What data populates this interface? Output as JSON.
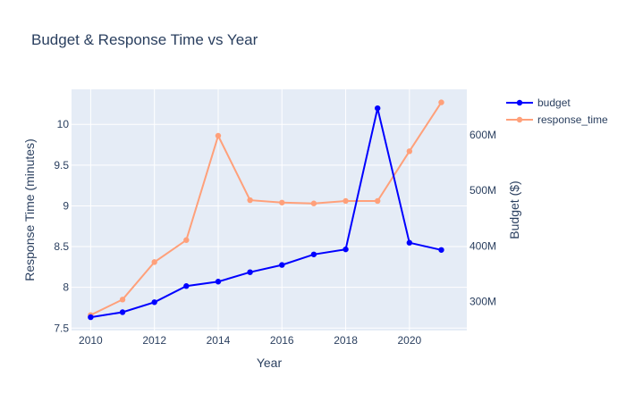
{
  "chart_data": {
    "type": "line",
    "title": "Budget & Response Time vs Year",
    "xlabel": "Year",
    "ylabel": "Response Time (minutes)",
    "y2label": "Budget ($)",
    "x": [
      2010,
      2011,
      2012,
      2013,
      2014,
      2015,
      2016,
      2017,
      2018,
      2019,
      2020,
      2021
    ],
    "x_ticks": [
      "2010",
      "2012",
      "2014",
      "2016",
      "2018",
      "2020"
    ],
    "y_ticks": [
      "7.5",
      "8",
      "8.5",
      "9",
      "9.5",
      "10"
    ],
    "y2_ticks": [
      "300M",
      "400M",
      "500M",
      "600M"
    ],
    "xlim": [
      2009.4,
      2021.8
    ],
    "ylim": [
      7.47,
      10.43
    ],
    "y2lim": [
      248000000,
      682000000
    ],
    "grid": true,
    "legend_position": "top-right",
    "series": [
      {
        "name": "budget",
        "axis": "right",
        "color": "#0000ff",
        "values": [
          272000000,
          281000000,
          299000000,
          328000000,
          336000000,
          353000000,
          366000000,
          385000000,
          394000000,
          648000000,
          406000000,
          393000000
        ]
      },
      {
        "name": "response_time",
        "axis": "left",
        "color": "#ffa07a",
        "values": [
          7.66,
          7.85,
          8.31,
          8.58,
          9.86,
          9.07,
          9.04,
          9.03,
          9.06,
          9.06,
          9.67,
          10.27
        ]
      }
    ]
  }
}
